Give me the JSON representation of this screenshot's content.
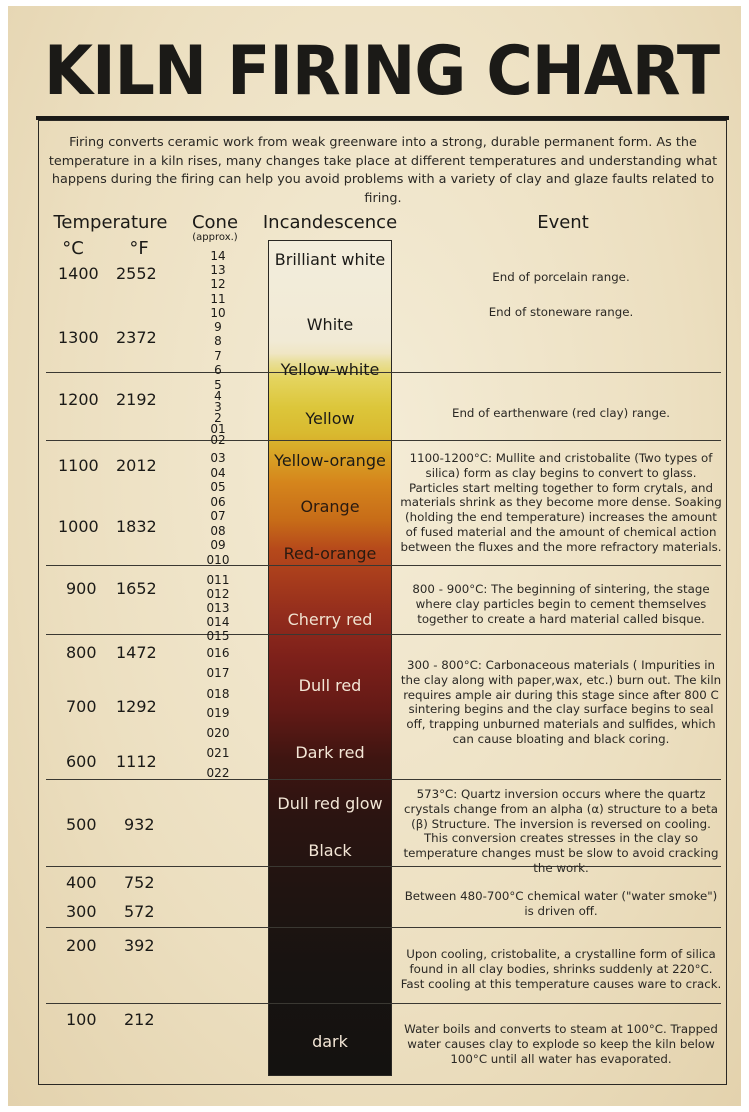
{
  "title": "KILN FIRING CHART",
  "intro": "Firing converts ceramic work from weak greenware into a strong, durable permanent form. As the temperature in a kiln rises, many changes take place at different temperatures and understanding what happens during the firing can help you avoid problems with a variety of clay and glaze faults related to firing.",
  "headers": {
    "temperature": "Temperature",
    "celsius": "°C",
    "fahrenheit": "°F",
    "cone": "Cone",
    "cone_note": "(approx.)",
    "incandescence": "Incandescence",
    "event": "Event"
  },
  "temperatures": [
    {
      "c": "1400",
      "f": "2552"
    },
    {
      "c": "1300",
      "f": "2372"
    },
    {
      "c": "1200",
      "f": "2192"
    },
    {
      "c": "1100",
      "f": "2012"
    },
    {
      "c": "1000",
      "f": "1832"
    },
    {
      "c": "900",
      "f": "1652"
    },
    {
      "c": "800",
      "f": "1472"
    },
    {
      "c": "700",
      "f": "1292"
    },
    {
      "c": "600",
      "f": "1112"
    },
    {
      "c": "500",
      "f": "932"
    },
    {
      "c": "400",
      "f": "752"
    },
    {
      "c": "300",
      "f": "572"
    },
    {
      "c": "200",
      "f": "392"
    },
    {
      "c": "100",
      "f": "212"
    }
  ],
  "cones": [
    "14",
    "13",
    "12",
    "11",
    "10",
    "9",
    "8",
    "7",
    "6",
    "5",
    "4",
    "3",
    "2",
    "01",
    "02",
    "03",
    "04",
    "05",
    "06",
    "07",
    "08",
    "09",
    "010",
    "011",
    "012",
    "013",
    "014",
    "015",
    "016",
    "017",
    "018",
    "019",
    "020",
    "021",
    "022"
  ],
  "incandescence": [
    "Brilliant white",
    "White",
    "Yellow-white",
    "Yellow",
    "Yellow-orange",
    "Orange",
    "Red-orange",
    "Cherry red",
    "Dull red",
    "Dark red",
    "Dull red glow",
    "Black",
    "dark"
  ],
  "events": [
    "End of porcelain range.",
    "End of stoneware range.",
    "End of earthenware (red clay) range.",
    "1100-1200°C: Mullite and cristobalite (Two types of silica) form as clay begins to convert to glass. Particles start melting together to form crytals, and materials shrink as they become more dense. Soaking (holding the end temperature) increases the amount of fused material and the amount of chemical action between the fluxes and the more refractory materials.",
    "800 - 900°C: The beginning of sintering, the stage where clay particles begin to cement themselves together to create a hard material called bisque.",
    "300 - 800°C: Carbonaceous materials ( Impurities in the clay along with paper,wax, etc.) burn out. The kiln requires ample air during this stage since after 800 C sintering begins and the clay surface begins to seal off, trapping unburned materials and sulfides, which can cause bloating and black coring.",
    "573°C: Quartz inversion occurs where the quartz crystals change from an alpha (α) structure to a beta (β) Structure. The inversion is reversed on cooling. This conversion creates stresses in the clay so temperature changes must be slow to avoid cracking the work.",
    "Between 480-700°C chemical water (\"water smoke\") is driven off.",
    "Upon cooling, cristobalite, a crystalline form of silica found in all clay bodies, shrinks suddenly at 220°C. Fast cooling at this temperature causes ware to crack.",
    "Water boils and converts to steam at 100°C. Trapped water causes clay to explode so keep the kiln below 100°C until all water has evaporated."
  ]
}
